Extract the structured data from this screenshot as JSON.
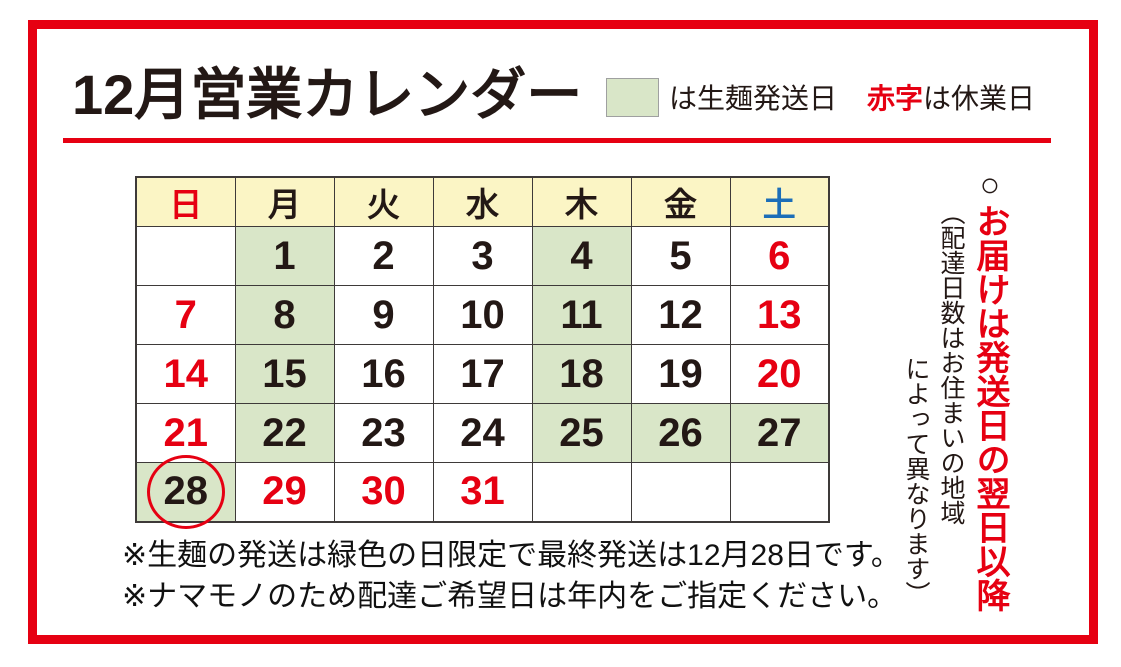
{
  "page": {
    "title": "12月営業カレンダー",
    "legend": {
      "green_label": "は生麺発送日",
      "red_term": "赤字",
      "red_label": "は休業日"
    },
    "colors": {
      "accent_red": "#e60012",
      "green_cell": "#d9e6c8",
      "header_yellow": "#fbf5c5",
      "saturday_blue": "#1c6eb8",
      "text_black": "#231815",
      "table_border": "#3e3a39"
    }
  },
  "calendar": {
    "weekdays": [
      {
        "label": "日",
        "color": "red"
      },
      {
        "label": "月",
        "color": "black"
      },
      {
        "label": "火",
        "color": "black"
      },
      {
        "label": "水",
        "color": "black"
      },
      {
        "label": "木",
        "color": "black"
      },
      {
        "label": "金",
        "color": "black"
      },
      {
        "label": "土",
        "color": "blue"
      }
    ],
    "rows": [
      [
        {
          "day": "",
          "bg": "white",
          "color": "black",
          "circled": false
        },
        {
          "day": "1",
          "bg": "green",
          "color": "black",
          "circled": false
        },
        {
          "day": "2",
          "bg": "white",
          "color": "black",
          "circled": false
        },
        {
          "day": "3",
          "bg": "white",
          "color": "black",
          "circled": false
        },
        {
          "day": "4",
          "bg": "green",
          "color": "black",
          "circled": false
        },
        {
          "day": "5",
          "bg": "white",
          "color": "black",
          "circled": false
        },
        {
          "day": "6",
          "bg": "white",
          "color": "red",
          "circled": false
        }
      ],
      [
        {
          "day": "7",
          "bg": "white",
          "color": "red",
          "circled": false
        },
        {
          "day": "8",
          "bg": "green",
          "color": "black",
          "circled": false
        },
        {
          "day": "9",
          "bg": "white",
          "color": "black",
          "circled": false
        },
        {
          "day": "10",
          "bg": "white",
          "color": "black",
          "circled": false
        },
        {
          "day": "11",
          "bg": "green",
          "color": "black",
          "circled": false
        },
        {
          "day": "12",
          "bg": "white",
          "color": "black",
          "circled": false
        },
        {
          "day": "13",
          "bg": "white",
          "color": "red",
          "circled": false
        }
      ],
      [
        {
          "day": "14",
          "bg": "white",
          "color": "red",
          "circled": false
        },
        {
          "day": "15",
          "bg": "green",
          "color": "black",
          "circled": false
        },
        {
          "day": "16",
          "bg": "white",
          "color": "black",
          "circled": false
        },
        {
          "day": "17",
          "bg": "white",
          "color": "black",
          "circled": false
        },
        {
          "day": "18",
          "bg": "green",
          "color": "black",
          "circled": false
        },
        {
          "day": "19",
          "bg": "white",
          "color": "black",
          "circled": false
        },
        {
          "day": "20",
          "bg": "white",
          "color": "red",
          "circled": false
        }
      ],
      [
        {
          "day": "21",
          "bg": "white",
          "color": "red",
          "circled": false
        },
        {
          "day": "22",
          "bg": "green",
          "color": "black",
          "circled": false
        },
        {
          "day": "23",
          "bg": "white",
          "color": "black",
          "circled": false
        },
        {
          "day": "24",
          "bg": "white",
          "color": "black",
          "circled": false
        },
        {
          "day": "25",
          "bg": "green",
          "color": "black",
          "circled": false
        },
        {
          "day": "26",
          "bg": "green",
          "color": "black",
          "circled": false
        },
        {
          "day": "27",
          "bg": "green",
          "color": "black",
          "circled": false
        }
      ],
      [
        {
          "day": "28",
          "bg": "green",
          "color": "black",
          "circled": true
        },
        {
          "day": "29",
          "bg": "white",
          "color": "red",
          "circled": false
        },
        {
          "day": "30",
          "bg": "white",
          "color": "red",
          "circled": false
        },
        {
          "day": "31",
          "bg": "white",
          "color": "red",
          "circled": false
        },
        {
          "day": "",
          "bg": "white",
          "color": "black",
          "circled": false
        },
        {
          "day": "",
          "bg": "white",
          "color": "black",
          "circled": false
        },
        {
          "day": "",
          "bg": "white",
          "color": "black",
          "circled": false
        }
      ]
    ]
  },
  "side_note": {
    "circle_mark": "○",
    "main": "お届けは発送日の翌日以降",
    "sub1": "（配達日数はお住まいの地域",
    "sub2": "によって異なります）"
  },
  "footnotes": [
    "※生麺の発送は緑色の日限定で最終発送は12月28日です。",
    "※ナマモノのため配達ご希望日は年内をご指定ください。"
  ]
}
